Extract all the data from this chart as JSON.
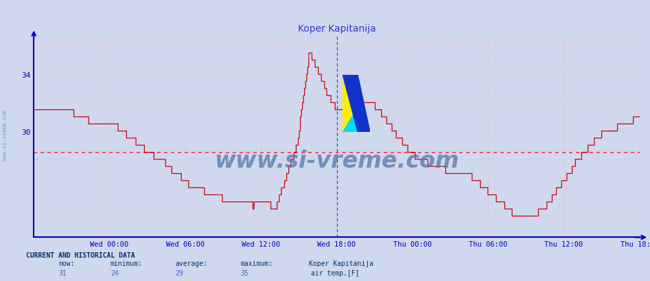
{
  "title": "Koper Kapitanija",
  "title_color": "#3333cc",
  "background_color": "#d0d8ee",
  "plot_bg_color": "#d0d8ee",
  "line_color": "#cc0000",
  "grid_color": "#e8b4b4",
  "avg_line_color": "#ff3333",
  "avg_value": 28.5,
  "ylim": [
    22.5,
    36.8
  ],
  "yticks": [
    30,
    34
  ],
  "xtick_color": "#0000bb",
  "axis_color": "#0000bb",
  "vline1_color": "#333388",
  "vline2_color": "#aaaaff",
  "watermark": "www.si-vreme.com",
  "watermark_color": "#5577aa",
  "xtick_labels": [
    "Wed 00:00",
    "Wed 06:00",
    "Wed 12:00",
    "Wed 18:00",
    "Thu 00:00",
    "Thu 06:00",
    "Thu 12:00",
    "Thu 18:00"
  ],
  "now": 31,
  "minimum": 24,
  "average": 29,
  "maximum": 35,
  "station": "Koper Kapitanija",
  "legend_label": "air temp.[F]",
  "legend_color": "#cc0000",
  "sidebar_text": "www.si-vreme.com",
  "sidebar_color": "#7799bb",
  "keypoints_t": [
    0,
    0.04,
    0.08,
    0.13,
    0.19,
    0.25,
    0.3,
    0.35,
    0.4,
    0.435,
    0.455,
    0.47,
    0.5,
    0.53,
    0.57,
    0.62,
    0.67,
    0.72,
    0.76,
    0.8,
    0.84,
    0.88,
    0.93,
    0.97,
    1.0
  ],
  "keypoints_v": [
    31.5,
    31.5,
    31.0,
    30.5,
    28.5,
    26.5,
    25.5,
    25.0,
    24.5,
    29.0,
    35.5,
    34.0,
    31.5,
    32.0,
    31.5,
    28.5,
    27.5,
    27.0,
    25.5,
    24.0,
    24.5,
    27.0,
    29.5,
    30.5,
    31.0
  ]
}
